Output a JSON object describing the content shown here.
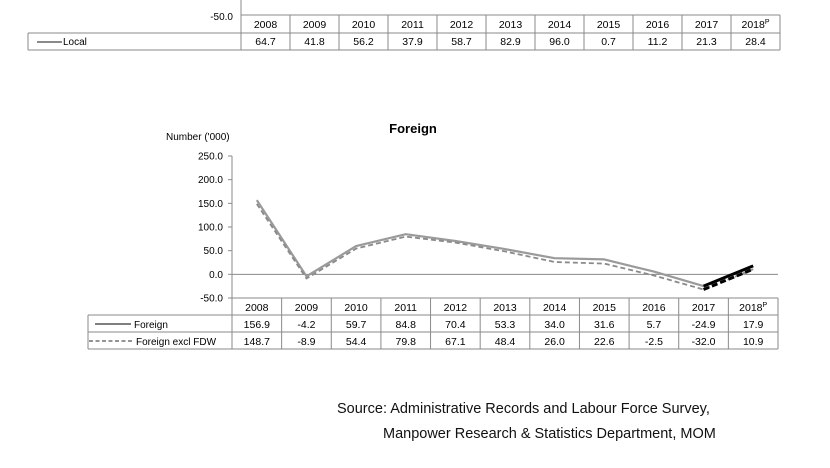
{
  "top_table": {
    "y_tick_label": "-50.0",
    "years": [
      "2008",
      "2009",
      "2010",
      "2011",
      "2012",
      "2013",
      "2014",
      "2015",
      "2016",
      "2017",
      "2018"
    ],
    "year_suffix_last": "P",
    "series": {
      "name": "Local",
      "values": [
        "64.7",
        "41.8",
        "56.2",
        "37.9",
        "58.7",
        "82.9",
        "96.0",
        "0.7",
        "11.2",
        "21.3",
        "28.4"
      ]
    }
  },
  "chart_data": {
    "type": "line",
    "title": "Foreign",
    "ylabel": "Number ('000)",
    "xlabel": "",
    "ylim": [
      -50,
      250
    ],
    "yticks": [
      "250.0",
      "200.0",
      "150.0",
      "100.0",
      "50.0",
      "0.0",
      "-50.0"
    ],
    "categories": [
      "2008",
      "2009",
      "2010",
      "2011",
      "2012",
      "2013",
      "2014",
      "2015",
      "2016",
      "2017",
      "2018"
    ],
    "last_category_suffix": "P",
    "series": [
      {
        "name": "Foreign",
        "style": "solid",
        "color": "#9a9a9a",
        "values": [
          156.9,
          -4.2,
          59.7,
          84.8,
          70.4,
          53.3,
          34.0,
          31.6,
          5.7,
          -24.9,
          17.9
        ],
        "labels": [
          "156.9",
          "-4.2",
          "59.7",
          "84.8",
          "70.4",
          "53.3",
          "34.0",
          "31.6",
          "5.7",
          "-24.9",
          "17.9"
        ]
      },
      {
        "name": "Foreign excl FDW",
        "style": "dashed",
        "color": "#8a8a8a",
        "values": [
          148.7,
          -8.9,
          54.4,
          79.8,
          67.1,
          48.4,
          26.0,
          22.6,
          -2.5,
          -32.0,
          10.9
        ],
        "labels": [
          "148.7",
          "-8.9",
          "54.4",
          "79.8",
          "67.1",
          "48.4",
          "26.0",
          "22.6",
          "-2.5",
          "-32.0",
          "10.9"
        ]
      }
    ],
    "highlight_segment": {
      "from": "2017",
      "to": "2018",
      "color": "#000000"
    },
    "grid": false
  },
  "source": {
    "line1": "Source: Administrative Records and Labour Force Survey,",
    "line2": "Manpower Research & Statistics Department, MOM"
  }
}
